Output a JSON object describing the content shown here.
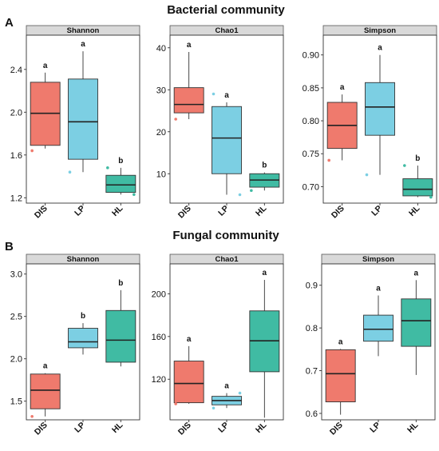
{
  "sections": [
    {
      "letter": "A",
      "title": "Bacterial community"
    },
    {
      "letter": "B",
      "title": "Fungal community"
    }
  ],
  "colors": {
    "DIS": "#ef7a6d",
    "LP": "#7ccfe3",
    "HL": "#40bba3"
  },
  "chart_data": [
    {
      "type": "box",
      "section": "A",
      "title": "Shannon",
      "ylim": [
        1.15,
        2.72
      ],
      "yticks": [
        1.2,
        1.6,
        2.0,
        2.4
      ],
      "ytick_labels": [
        "1.2",
        "1.6",
        "2.0",
        "2.4"
      ],
      "categories": [
        "DIS",
        "LP",
        "HL"
      ],
      "boxes": [
        {
          "name": "DIS",
          "whisker_low": 1.66,
          "q1": 1.69,
          "median": 1.99,
          "q3": 2.28,
          "whisker_high": 2.37,
          "outliers": [
            1.64
          ],
          "label": "a"
        },
        {
          "name": "LP",
          "whisker_low": 1.44,
          "q1": 1.56,
          "median": 1.91,
          "q3": 2.31,
          "whisker_high": 2.57,
          "outliers": [
            1.44
          ],
          "label": "a"
        },
        {
          "name": "HL",
          "whisker_low": 1.23,
          "q1": 1.25,
          "median": 1.32,
          "q3": 1.41,
          "whisker_high": 1.48,
          "outliers": [
            1.48,
            1.23
          ],
          "label": "b"
        }
      ]
    },
    {
      "type": "box",
      "section": "A",
      "title": "Chao1",
      "ylim": [
        3,
        43
      ],
      "yticks": [
        10,
        20,
        30,
        40
      ],
      "ytick_labels": [
        "10",
        "20",
        "30",
        "40"
      ],
      "categories": [
        "DIS",
        "LP",
        "HL"
      ],
      "boxes": [
        {
          "name": "DIS",
          "whisker_low": 23,
          "q1": 24.5,
          "median": 26.5,
          "q3": 30.5,
          "whisker_high": 39,
          "outliers": [
            23
          ],
          "label": "a"
        },
        {
          "name": "LP",
          "whisker_low": 5,
          "q1": 10,
          "median": 18.5,
          "q3": 26,
          "whisker_high": 27,
          "outliers": [
            29,
            5
          ],
          "label": "a"
        },
        {
          "name": "HL",
          "whisker_low": 6,
          "q1": 6.8,
          "median": 8.5,
          "q3": 10,
          "whisker_high": 10.3,
          "outliers": [
            6
          ],
          "label": "b"
        }
      ]
    },
    {
      "type": "box",
      "section": "A",
      "title": "Simpson",
      "ylim": [
        0.675,
        0.93
      ],
      "yticks": [
        0.7,
        0.75,
        0.8,
        0.85,
        0.9
      ],
      "ytick_labels": [
        "0.70",
        "0.75",
        "0.80",
        "0.85",
        "0.90"
      ],
      "categories": [
        "DIS",
        "LP",
        "HL"
      ],
      "boxes": [
        {
          "name": "DIS",
          "whisker_low": 0.74,
          "q1": 0.758,
          "median": 0.793,
          "q3": 0.828,
          "whisker_high": 0.84,
          "outliers": [
            0.74
          ],
          "label": "a"
        },
        {
          "name": "LP",
          "whisker_low": 0.718,
          "q1": 0.778,
          "median": 0.821,
          "q3": 0.858,
          "whisker_high": 0.9,
          "outliers": [
            0.718
          ],
          "label": "a"
        },
        {
          "name": "HL",
          "whisker_low": 0.684,
          "q1": 0.686,
          "median": 0.696,
          "q3": 0.712,
          "whisker_high": 0.732,
          "outliers": [
            0.732,
            0.684
          ],
          "label": "b"
        }
      ]
    },
    {
      "type": "box",
      "section": "B",
      "title": "Shannon",
      "ylim": [
        1.28,
        3.12
      ],
      "yticks": [
        1.5,
        2.0,
        2.5,
        3.0
      ],
      "ytick_labels": [
        "1.5",
        "2.0",
        "2.5",
        "3.0"
      ],
      "categories": [
        "DIS",
        "LP",
        "HL"
      ],
      "boxes": [
        {
          "name": "DIS",
          "whisker_low": 1.32,
          "q1": 1.41,
          "median": 1.63,
          "q3": 1.82,
          "whisker_high": 1.83,
          "outliers": [
            1.32
          ],
          "label": "a"
        },
        {
          "name": "LP",
          "whisker_low": 2.05,
          "q1": 2.13,
          "median": 2.2,
          "q3": 2.36,
          "whisker_high": 2.42,
          "outliers": [],
          "label": "b"
        },
        {
          "name": "HL",
          "whisker_low": 1.91,
          "q1": 1.96,
          "median": 2.22,
          "q3": 2.57,
          "whisker_high": 2.81,
          "outliers": [],
          "label": "b"
        }
      ]
    },
    {
      "type": "box",
      "section": "B",
      "title": "Chao1",
      "ylim": [
        82,
        228
      ],
      "yticks": [
        120,
        160,
        200
      ],
      "ytick_labels": [
        "120",
        "160",
        "200"
      ],
      "categories": [
        "DIS",
        "LP",
        "HL"
      ],
      "boxes": [
        {
          "name": "DIS",
          "whisker_low": 97,
          "q1": 98,
          "median": 116,
          "q3": 137,
          "whisker_high": 151,
          "outliers": [
            97
          ],
          "label": "a"
        },
        {
          "name": "LP",
          "whisker_low": 93,
          "q1": 96,
          "median": 100,
          "q3": 104,
          "whisker_high": 107,
          "outliers": [
            93,
            107
          ],
          "label": "a"
        },
        {
          "name": "HL",
          "whisker_low": 84,
          "q1": 127,
          "median": 156,
          "q3": 184,
          "whisker_high": 213,
          "outliers": [],
          "label": "a"
        }
      ]
    },
    {
      "type": "box",
      "section": "B",
      "title": "Simpson",
      "ylim": [
        0.585,
        0.95
      ],
      "yticks": [
        0.6,
        0.7,
        0.8,
        0.9
      ],
      "ytick_labels": [
        "0.6",
        "0.7",
        "0.8",
        "0.9"
      ],
      "categories": [
        "DIS",
        "LP",
        "HL"
      ],
      "boxes": [
        {
          "name": "DIS",
          "whisker_low": 0.597,
          "q1": 0.627,
          "median": 0.693,
          "q3": 0.749,
          "whisker_high": 0.751,
          "outliers": [],
          "label": "a"
        },
        {
          "name": "LP",
          "whisker_low": 0.734,
          "q1": 0.769,
          "median": 0.797,
          "q3": 0.83,
          "whisker_high": 0.876,
          "outliers": [],
          "label": "a"
        },
        {
          "name": "HL",
          "whisker_low": 0.69,
          "q1": 0.757,
          "median": 0.817,
          "q3": 0.868,
          "whisker_high": 0.912,
          "outliers": [],
          "label": "a"
        }
      ]
    }
  ]
}
